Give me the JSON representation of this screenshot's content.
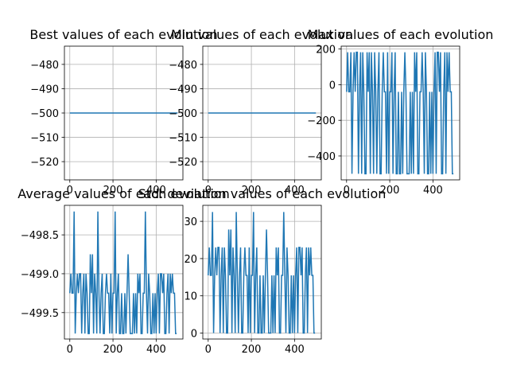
{
  "chart_data": [
    {
      "type": "line",
      "title": "Best values of each evolution",
      "color": "#1f77b4",
      "grid": true,
      "x": [
        0,
        499
      ],
      "values": [
        -500,
        -500
      ],
      "xlim": [
        -24.95,
        523.95
      ],
      "xticks": [
        0,
        200,
        400
      ],
      "ylim": [
        -527.5,
        -472.5
      ],
      "yticks": [
        {
          "value": -520,
          "label": "−520"
        },
        {
          "value": -510,
          "label": "−510"
        },
        {
          "value": -500,
          "label": "−500"
        },
        {
          "value": -490,
          "label": "−490"
        },
        {
          "value": -480,
          "label": "−480"
        }
      ]
    },
    {
      "type": "line",
      "title": "Min values of each evolution",
      "color": "#1f77b4",
      "grid": true,
      "x": [
        0,
        499
      ],
      "values": [
        -500,
        -500
      ],
      "xlim": [
        -24.95,
        523.95
      ],
      "xticks": [
        0,
        200,
        400
      ],
      "ylim": [
        -527.5,
        -472.5
      ],
      "yticks": [
        {
          "value": -520,
          "label": "−520"
        },
        {
          "value": -510,
          "label": "−510"
        },
        {
          "value": -500,
          "label": "−500"
        },
        {
          "value": -490,
          "label": "−490"
        },
        {
          "value": -480,
          "label": "−480"
        }
      ]
    },
    {
      "type": "line",
      "title": "Max values of each evolution",
      "color": "#1f77b4",
      "grid": true,
      "x": [
        0,
        5,
        10,
        15,
        20,
        25,
        30,
        35,
        40,
        45,
        50,
        55,
        60,
        65,
        70,
        75,
        80,
        85,
        90,
        95,
        100,
        105,
        110,
        115,
        120,
        125,
        130,
        135,
        140,
        145,
        150,
        155,
        160,
        165,
        170,
        175,
        180,
        185,
        190,
        195,
        200,
        205,
        210,
        215,
        220,
        225,
        230,
        235,
        240,
        245,
        250,
        255,
        260,
        265,
        270,
        275,
        280,
        285,
        290,
        295,
        300,
        305,
        310,
        315,
        320,
        325,
        330,
        335,
        340,
        345,
        350,
        355,
        360,
        365,
        370,
        375,
        380,
        385,
        390,
        395,
        400,
        405,
        410,
        415,
        420,
        425,
        430,
        435,
        440,
        445,
        450,
        455,
        460,
        465,
        470,
        475,
        480,
        485,
        490,
        495
      ],
      "values": [
        -40,
        182,
        -40,
        -40,
        182,
        -500,
        -40,
        182,
        -40,
        182,
        182,
        -500,
        -40,
        182,
        -500,
        182,
        -40,
        -500,
        -500,
        182,
        -40,
        182,
        -500,
        182,
        -40,
        -500,
        182,
        -40,
        -500,
        -40,
        182,
        -500,
        -500,
        -40,
        182,
        -40,
        -40,
        -500,
        182,
        -500,
        -40,
        -40,
        182,
        -500,
        -40,
        182,
        -500,
        -500,
        -40,
        -500,
        -500,
        -40,
        -500,
        -40,
        182,
        -40,
        -500,
        -500,
        -500,
        -40,
        -500,
        -40,
        -500,
        182,
        -40,
        182,
        -500,
        -500,
        -40,
        -40,
        182,
        -40,
        -500,
        182,
        -40,
        -500,
        -500,
        -40,
        -500,
        -40,
        -500,
        -40,
        182,
        -500,
        182,
        182,
        -40,
        182,
        -500,
        -500,
        -40,
        182,
        -500,
        182,
        -40,
        182,
        -40,
        -40,
        -500,
        -500
      ],
      "xlim": [
        -24.95,
        523.95
      ],
      "xticks": [
        0,
        200,
        400
      ],
      "ylim": [
        -534.1,
        216.1
      ],
      "yticks": [
        {
          "value": -400,
          "label": "−400"
        },
        {
          "value": -200,
          "label": "−200"
        },
        0,
        200
      ]
    },
    {
      "type": "line",
      "title": "Average values of each evolution",
      "color": "#1f77b4",
      "grid": true,
      "x": [
        0,
        5,
        10,
        15,
        20,
        25,
        30,
        35,
        40,
        45,
        50,
        55,
        60,
        65,
        70,
        75,
        80,
        85,
        90,
        95,
        100,
        105,
        110,
        115,
        120,
        125,
        130,
        135,
        140,
        145,
        150,
        155,
        160,
        165,
        170,
        175,
        180,
        185,
        190,
        195,
        200,
        205,
        210,
        215,
        220,
        225,
        230,
        235,
        240,
        245,
        250,
        255,
        260,
        265,
        270,
        275,
        280,
        285,
        290,
        295,
        300,
        305,
        310,
        315,
        320,
        325,
        330,
        335,
        340,
        345,
        350,
        355,
        360,
        365,
        370,
        375,
        380,
        385,
        390,
        395,
        400,
        405,
        410,
        415,
        420,
        425,
        430,
        435,
        440,
        445,
        450,
        455,
        460,
        465,
        470,
        475,
        480,
        485,
        490,
        495
      ],
      "values": [
        -499.25,
        -499.0,
        -499.25,
        -499.25,
        -498.2,
        -499.77,
        -499.25,
        -499.0,
        -499.25,
        -499.0,
        -499.0,
        -499.77,
        -499.25,
        -499.0,
        -499.77,
        -499.0,
        -499.25,
        -499.77,
        -499.77,
        -498.75,
        -499.25,
        -498.75,
        -499.77,
        -499.0,
        -499.25,
        -499.77,
        -498.2,
        -499.25,
        -499.77,
        -499.25,
        -499.0,
        -499.77,
        -499.77,
        -499.25,
        -499.0,
        -499.25,
        -499.25,
        -499.77,
        -499.0,
        -499.77,
        -499.25,
        -499.25,
        -498.2,
        -499.77,
        -499.25,
        -499.0,
        -499.77,
        -499.77,
        -499.25,
        -499.77,
        -499.77,
        -499.25,
        -499.77,
        -499.25,
        -498.75,
        -499.25,
        -499.77,
        -499.77,
        -499.77,
        -499.25,
        -499.77,
        -499.25,
        -499.77,
        -499.0,
        -499.25,
        -499.0,
        -499.77,
        -499.77,
        -499.25,
        -499.25,
        -498.2,
        -499.25,
        -499.77,
        -499.0,
        -499.25,
        -499.77,
        -499.77,
        -499.25,
        -499.77,
        -499.25,
        -499.77,
        -499.25,
        -499.0,
        -499.77,
        -499.0,
        -499.0,
        -499.25,
        -499.0,
        -499.77,
        -499.77,
        -499.25,
        -499.0,
        -499.77,
        -499.0,
        -499.25,
        -499.0,
        -499.25,
        -499.25,
        -499.77,
        -499.77
      ],
      "xlim": [
        -24.95,
        523.95
      ],
      "xticks": [
        0,
        200,
        400
      ],
      "ylim": [
        -499.84,
        -498.12
      ],
      "yticks": [
        {
          "value": -499.5,
          "label": "−499.5"
        },
        {
          "value": -499,
          "label": "−499.0"
        },
        {
          "value": -498.5,
          "label": "−498.5"
        }
      ]
    },
    {
      "type": "line",
      "title": "Std. deviation values of each evolution",
      "color": "#1f77b4",
      "grid": true,
      "x": [
        0,
        5,
        10,
        15,
        20,
        25,
        30,
        35,
        40,
        45,
        50,
        55,
        60,
        65,
        70,
        75,
        80,
        85,
        90,
        95,
        100,
        105,
        110,
        115,
        120,
        125,
        130,
        135,
        140,
        145,
        150,
        155,
        160,
        165,
        170,
        175,
        180,
        185,
        190,
        195,
        200,
        205,
        210,
        215,
        220,
        225,
        230,
        235,
        240,
        245,
        250,
        255,
        260,
        265,
        270,
        275,
        280,
        285,
        290,
        295,
        300,
        305,
        310,
        315,
        320,
        325,
        330,
        335,
        340,
        345,
        350,
        355,
        360,
        365,
        370,
        375,
        380,
        385,
        390,
        395,
        400,
        405,
        410,
        415,
        420,
        425,
        430,
        435,
        440,
        445,
        450,
        455,
        460,
        465,
        470,
        475,
        480,
        485,
        490,
        495
      ],
      "values": [
        15.5,
        23,
        15.5,
        15.5,
        32.5,
        0,
        15.5,
        23,
        15.5,
        23,
        23,
        0,
        15.5,
        23,
        0,
        23,
        15.5,
        0,
        0,
        27.8,
        15.5,
        27.8,
        0,
        23,
        15.5,
        0,
        32.5,
        15.5,
        0,
        15.5,
        23,
        0,
        0,
        15.5,
        23,
        15.5,
        15.5,
        0,
        23,
        0,
        15.5,
        15.5,
        32.5,
        0,
        15.5,
        23,
        0,
        0,
        15.5,
        0,
        0,
        15.5,
        0,
        15.5,
        27.8,
        15.5,
        0,
        0,
        0,
        15.5,
        0,
        15.5,
        0,
        23,
        15.5,
        23,
        0,
        0,
        15.5,
        15.5,
        32.5,
        15.5,
        0,
        23,
        15.5,
        0,
        0,
        15.5,
        0,
        15.5,
        0,
        15.5,
        23,
        0,
        23,
        23,
        15.5,
        23,
        0,
        0,
        15.5,
        23,
        0,
        23,
        15.5,
        23,
        15.5,
        15.5,
        0,
        0
      ],
      "xlim": [
        -24.95,
        523.95
      ],
      "xticks": [
        0,
        200,
        400
      ],
      "ylim": [
        -1.6,
        34.3
      ],
      "yticks": [
        0,
        10,
        20,
        30
      ]
    }
  ]
}
